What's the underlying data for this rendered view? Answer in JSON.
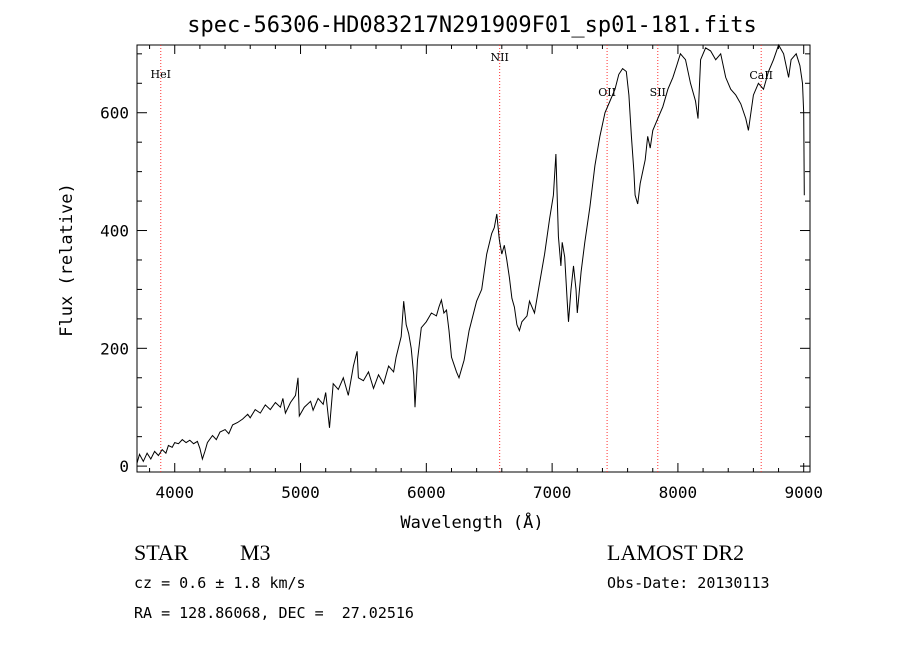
{
  "chart_data": {
    "type": "line",
    "title": "spec-56306-HD083217N291909F01_sp01-181.fits",
    "xlabel": "Wavelength (Å)",
    "ylabel": "Flux (relative)",
    "xlim": [
      3700,
      9050
    ],
    "ylim": [
      -10,
      715
    ],
    "xticks": [
      4000,
      5000,
      6000,
      7000,
      8000,
      9000
    ],
    "yticks": [
      0,
      200,
      400,
      600
    ],
    "series": [
      {
        "name": "spectrum",
        "points": [
          [
            3700,
            5
          ],
          [
            3720,
            20
          ],
          [
            3750,
            8
          ],
          [
            3780,
            22
          ],
          [
            3810,
            12
          ],
          [
            3840,
            25
          ],
          [
            3870,
            18
          ],
          [
            3900,
            28
          ],
          [
            3930,
            22
          ],
          [
            3950,
            35
          ],
          [
            3980,
            32
          ],
          [
            4000,
            40
          ],
          [
            4030,
            38
          ],
          [
            4060,
            45
          ],
          [
            4090,
            40
          ],
          [
            4120,
            44
          ],
          [
            4150,
            38
          ],
          [
            4180,
            42
          ],
          [
            4200,
            30
          ],
          [
            4220,
            12
          ],
          [
            4240,
            25
          ],
          [
            4260,
            40
          ],
          [
            4300,
            52
          ],
          [
            4330,
            45
          ],
          [
            4360,
            58
          ],
          [
            4400,
            62
          ],
          [
            4430,
            55
          ],
          [
            4460,
            70
          ],
          [
            4500,
            74
          ],
          [
            4540,
            80
          ],
          [
            4580,
            88
          ],
          [
            4600,
            82
          ],
          [
            4640,
            96
          ],
          [
            4680,
            90
          ],
          [
            4720,
            104
          ],
          [
            4760,
            96
          ],
          [
            4800,
            108
          ],
          [
            4840,
            100
          ],
          [
            4860,
            115
          ],
          [
            4880,
            90
          ],
          [
            4920,
            108
          ],
          [
            4960,
            120
          ],
          [
            4980,
            150
          ],
          [
            4990,
            85
          ],
          [
            5030,
            100
          ],
          [
            5080,
            110
          ],
          [
            5100,
            95
          ],
          [
            5140,
            115
          ],
          [
            5180,
            105
          ],
          [
            5200,
            125
          ],
          [
            5230,
            65
          ],
          [
            5260,
            140
          ],
          [
            5300,
            130
          ],
          [
            5340,
            150
          ],
          [
            5380,
            120
          ],
          [
            5420,
            170
          ],
          [
            5450,
            195
          ],
          [
            5460,
            150
          ],
          [
            5500,
            145
          ],
          [
            5540,
            160
          ],
          [
            5580,
            132
          ],
          [
            5620,
            155
          ],
          [
            5660,
            140
          ],
          [
            5700,
            170
          ],
          [
            5740,
            160
          ],
          [
            5760,
            185
          ],
          [
            5800,
            220
          ],
          [
            5820,
            280
          ],
          [
            5840,
            240
          ],
          [
            5860,
            225
          ],
          [
            5880,
            200
          ],
          [
            5900,
            155
          ],
          [
            5910,
            100
          ],
          [
            5930,
            180
          ],
          [
            5960,
            235
          ],
          [
            6000,
            245
          ],
          [
            6040,
            260
          ],
          [
            6080,
            255
          ],
          [
            6100,
            270
          ],
          [
            6120,
            282
          ],
          [
            6140,
            260
          ],
          [
            6160,
            265
          ],
          [
            6180,
            230
          ],
          [
            6200,
            185
          ],
          [
            6240,
            160
          ],
          [
            6260,
            150
          ],
          [
            6300,
            180
          ],
          [
            6340,
            230
          ],
          [
            6400,
            280
          ],
          [
            6440,
            300
          ],
          [
            6480,
            360
          ],
          [
            6520,
            395
          ],
          [
            6540,
            405
          ],
          [
            6560,
            428
          ],
          [
            6580,
            385
          ],
          [
            6600,
            360
          ],
          [
            6620,
            375
          ],
          [
            6640,
            350
          ],
          [
            6660,
            320
          ],
          [
            6680,
            285
          ],
          [
            6700,
            270
          ],
          [
            6720,
            240
          ],
          [
            6740,
            230
          ],
          [
            6760,
            245
          ],
          [
            6800,
            255
          ],
          [
            6820,
            280
          ],
          [
            6860,
            260
          ],
          [
            6900,
            310
          ],
          [
            6940,
            360
          ],
          [
            6980,
            420
          ],
          [
            7010,
            460
          ],
          [
            7030,
            530
          ],
          [
            7050,
            390
          ],
          [
            7070,
            340
          ],
          [
            7080,
            380
          ],
          [
            7100,
            355
          ],
          [
            7120,
            280
          ],
          [
            7130,
            245
          ],
          [
            7150,
            300
          ],
          [
            7170,
            340
          ],
          [
            7190,
            300
          ],
          [
            7200,
            260
          ],
          [
            7230,
            330
          ],
          [
            7260,
            380
          ],
          [
            7300,
            440
          ],
          [
            7340,
            510
          ],
          [
            7380,
            560
          ],
          [
            7420,
            600
          ],
          [
            7460,
            620
          ],
          [
            7500,
            640
          ],
          [
            7530,
            665
          ],
          [
            7560,
            675
          ],
          [
            7590,
            670
          ],
          [
            7610,
            630
          ],
          [
            7630,
            560
          ],
          [
            7650,
            500
          ],
          [
            7660,
            460
          ],
          [
            7680,
            445
          ],
          [
            7700,
            480
          ],
          [
            7720,
            500
          ],
          [
            7740,
            520
          ],
          [
            7760,
            560
          ],
          [
            7780,
            540
          ],
          [
            7800,
            570
          ],
          [
            7840,
            590
          ],
          [
            7880,
            610
          ],
          [
            7920,
            640
          ],
          [
            7960,
            660
          ],
          [
            7990,
            680
          ],
          [
            8020,
            700
          ],
          [
            8060,
            690
          ],
          [
            8100,
            650
          ],
          [
            8140,
            620
          ],
          [
            8160,
            590
          ],
          [
            8180,
            690
          ],
          [
            8220,
            710
          ],
          [
            8260,
            705
          ],
          [
            8300,
            690
          ],
          [
            8340,
            700
          ],
          [
            8380,
            660
          ],
          [
            8420,
            640
          ],
          [
            8460,
            630
          ],
          [
            8500,
            615
          ],
          [
            8540,
            590
          ],
          [
            8560,
            570
          ],
          [
            8600,
            630
          ],
          [
            8640,
            650
          ],
          [
            8680,
            640
          ],
          [
            8720,
            670
          ],
          [
            8760,
            690
          ],
          [
            8800,
            715
          ],
          [
            8840,
            700
          ],
          [
            8880,
            660
          ],
          [
            8900,
            690
          ],
          [
            8940,
            700
          ],
          [
            8970,
            680
          ],
          [
            8990,
            650
          ],
          [
            9000,
            600
          ],
          [
            9005,
            460
          ]
        ]
      }
    ],
    "lines": [
      {
        "label": "HeI",
        "x": 3889
      },
      {
        "label": "NII",
        "x": 6583
      },
      {
        "label": "OII",
        "x": 7437
      },
      {
        "label": "SII",
        "x": 7840
      },
      {
        "label": "CaII",
        "x": 8662
      }
    ],
    "line_color": "#ff3030"
  },
  "info": {
    "object_class": "STAR",
    "subclass": "M3",
    "survey": "LAMOST DR2",
    "redshift": "cz = 0.6 ± 1.8 km/s",
    "obs_date": "Obs-Date: 20130113",
    "coords": "RA = 128.86068, DEC =  27.02516"
  }
}
